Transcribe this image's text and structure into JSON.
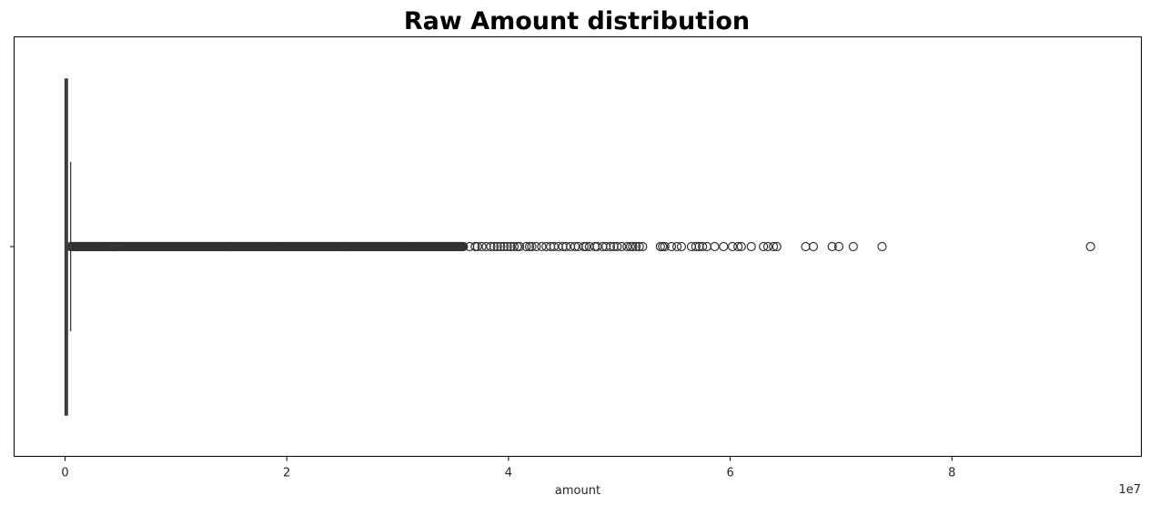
{
  "chart_data": {
    "type": "boxplot",
    "title": "Raw Amount distribution",
    "xlabel": "amount",
    "ylabel": "",
    "x_offset_label": "1e7",
    "x_ticks": [
      0,
      2,
      4,
      6,
      8
    ],
    "x_tick_labels": [
      "0",
      "2",
      "4",
      "6",
      "8"
    ],
    "xlim": [
      -0.5,
      9.7
    ],
    "x_unit_multiplier": 10000000,
    "orientation": "horizontal",
    "grid": false,
    "colors": {
      "box_edge": "#3a3a3a",
      "box_fill": "#4f7f72",
      "outlier_edge": "#333333"
    },
    "box": {
      "whisker_low": 0,
      "q1": 0.0013,
      "median": 0.0075,
      "q3": 0.0209,
      "whisker_high": 0.0501
    },
    "outliers_dense_range": [
      0.051,
      3.6
    ],
    "outliers": [
      3.65,
      3.7,
      3.72,
      3.76,
      3.8,
      3.84,
      3.87,
      3.9,
      3.93,
      3.96,
      3.99,
      4.02,
      4.05,
      4.08,
      4.1,
      4.16,
      4.19,
      4.21,
      4.25,
      4.3,
      4.34,
      4.38,
      4.41,
      4.45,
      4.49,
      4.52,
      4.56,
      4.6,
      4.63,
      4.68,
      4.7,
      4.73,
      4.78,
      4.8,
      4.85,
      4.88,
      4.92,
      4.95,
      4.98,
      5.02,
      5.07,
      5.1,
      5.12,
      5.15,
      5.18,
      5.21,
      5.37,
      5.39,
      5.41,
      5.47,
      5.52,
      5.56,
      5.65,
      5.69,
      5.72,
      5.75,
      5.79,
      5.86,
      5.94,
      6.02,
      6.07,
      6.1,
      6.19,
      6.3,
      6.34,
      6.39,
      6.42,
      6.68,
      6.75,
      6.92,
      6.98,
      7.11,
      7.37,
      9.25
    ]
  }
}
